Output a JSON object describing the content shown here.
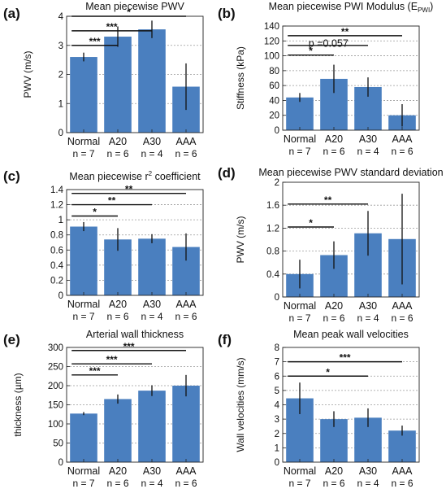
{
  "chart_data": [
    {
      "type": "bar",
      "panel": "(a)",
      "title": "Mean piecewise PWV",
      "ylabel": "PWV (m/s)",
      "ylim": [
        0,
        4
      ],
      "yticks": [
        "0",
        "1",
        "2",
        "3",
        "4"
      ],
      "categories": [
        "Normal",
        "A20",
        "A30",
        "AAA"
      ],
      "n_labels": [
        "n = 7",
        "n = 6",
        "n = 4",
        "n = 6"
      ],
      "values": [
        2.6,
        3.3,
        3.55,
        1.58
      ],
      "errors": [
        0.15,
        0.35,
        0.3,
        0.8
      ],
      "bar_color": "#4a7fbf",
      "grid": true,
      "significance": [
        {
          "from": 0,
          "to": 1,
          "label": "***"
        },
        {
          "from": 0,
          "to": 2,
          "label": "***"
        },
        {
          "from": 0,
          "to": 3,
          "label": "*"
        }
      ],
      "annotations": []
    },
    {
      "type": "bar",
      "panel": "(b)",
      "title": "Mean piecewise  PWI Modulus (E",
      "title_sub": "PWI",
      "title_end": ")",
      "ylabel": "Stiffness (kPa)",
      "ylim": [
        0,
        140
      ],
      "yticks": [
        "0",
        "20",
        "40",
        "60",
        "80",
        "100",
        "120",
        "140"
      ],
      "categories": [
        "Normal",
        "A20",
        "A30",
        "AAA"
      ],
      "n_labels": [
        "n = 7",
        "n = 6",
        "n = 4",
        "n = 6"
      ],
      "values": [
        44,
        69,
        58,
        20
      ],
      "errors": [
        6,
        19,
        13,
        15
      ],
      "bar_color": "#4a7fbf",
      "grid": true,
      "significance": [
        {
          "from": 0,
          "to": 1,
          "label": "*"
        },
        {
          "from": 0,
          "to": 2,
          "label": ""
        },
        {
          "from": 0,
          "to": 3,
          "label": "**"
        }
      ],
      "annotations": [
        "p =0.057"
      ]
    },
    {
      "type": "bar",
      "panel": "(c)",
      "title": "Mean piecewise r",
      "title_sup": "2",
      "title_end": " coefficient",
      "ylabel": "",
      "ylim": [
        0,
        1.4
      ],
      "yticks": [
        "0",
        "0.2",
        "0.4",
        "0.6",
        "0.8",
        "1",
        "1.2",
        "1.4"
      ],
      "categories": [
        "Normal",
        "A20",
        "A30",
        "AAA"
      ],
      "n_labels": [
        "n = 7",
        "n = 6",
        "n = 4",
        "n = 6"
      ],
      "values": [
        0.91,
        0.74,
        0.75,
        0.64
      ],
      "errors": [
        0.06,
        0.15,
        0.06,
        0.18
      ],
      "bar_color": "#4a7fbf",
      "grid": true,
      "significance": [
        {
          "from": 0,
          "to": 1,
          "label": "*"
        },
        {
          "from": 0,
          "to": 2,
          "label": "**"
        },
        {
          "from": 0,
          "to": 3,
          "label": "**"
        }
      ],
      "annotations": []
    },
    {
      "type": "bar",
      "panel": "(d)",
      "title": "Mean piecewise PWV standard deviation",
      "ylabel": "PWV  (m/s)",
      "ylim": [
        0,
        2
      ],
      "yticks": [
        "0",
        "0.4",
        "0.8",
        "1.2",
        "1.6",
        "2"
      ],
      "categories": [
        "Normal",
        "A20",
        "A30",
        "AAA"
      ],
      "n_labels": [
        "n = 7",
        "n = 6",
        "n = 4",
        "n = 6"
      ],
      "values": [
        0.4,
        0.73,
        1.11,
        1.01
      ],
      "errors": [
        0.25,
        0.24,
        0.39,
        0.79
      ],
      "bar_color": "#4a7fbf",
      "grid": true,
      "significance": [
        {
          "from": 0,
          "to": 1,
          "label": "*"
        },
        {
          "from": 0,
          "to": 2,
          "label": "**"
        }
      ],
      "annotations": []
    },
    {
      "type": "bar",
      "panel": "(e)",
      "title": "Arterial wall thickness",
      "ylabel": "thickness (µm)",
      "ylim": [
        0,
        300
      ],
      "yticks": [
        "0",
        "50",
        "100",
        "150",
        "200",
        "250",
        "300"
      ],
      "categories": [
        "Normal",
        "A20",
        "A30",
        "AAA"
      ],
      "n_labels": [
        "n = 7",
        "n = 6",
        "n = 4",
        "n = 6"
      ],
      "values": [
        127,
        165,
        187,
        200
      ],
      "errors": [
        4,
        12,
        14,
        28
      ],
      "bar_color": "#4a7fbf",
      "grid": true,
      "significance": [
        {
          "from": 0,
          "to": 1,
          "label": "***"
        },
        {
          "from": 0,
          "to": 2,
          "label": "***"
        },
        {
          "from": 0,
          "to": 3,
          "label": "***"
        }
      ],
      "annotations": []
    },
    {
      "type": "bar",
      "panel": "(f)",
      "title": "Mean peak wall velocities",
      "ylabel": "Wall velocities (mm/s)",
      "ylim": [
        0,
        8
      ],
      "yticks": [
        "0",
        "1",
        "2",
        "3",
        "4",
        "5",
        "6",
        "7",
        "8"
      ],
      "categories": [
        "Normal",
        "A20",
        "A30",
        "AAA"
      ],
      "n_labels": [
        "n = 7",
        "n = 6",
        "n = 4",
        "n = 6"
      ],
      "values": [
        4.45,
        3.0,
        3.1,
        2.2
      ],
      "errors": [
        1.1,
        0.55,
        0.65,
        0.35
      ],
      "bar_color": "#4a7fbf",
      "grid": true,
      "significance": [
        {
          "from": 0,
          "to": 2,
          "label": "*"
        },
        {
          "from": 0,
          "to": 3,
          "label": "***"
        }
      ],
      "annotations": []
    }
  ]
}
